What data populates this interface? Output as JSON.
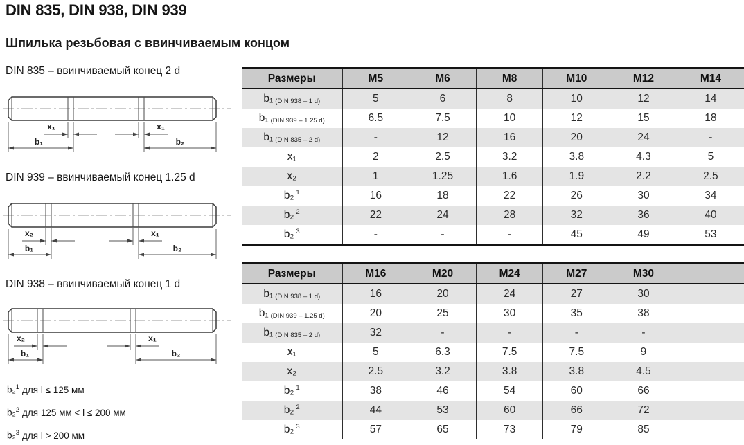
{
  "page": {
    "title": "DIN 835, DIN 938, DIN 939",
    "subtitle": "Шпилька резьбовая с ввинчиваемым концом"
  },
  "drawings": [
    {
      "caption": "DIN 835 – ввинчиваемый конец 2 d",
      "dims": {
        "left_x": "x₁",
        "left_b": "b₁",
        "right_x": "x₁",
        "right_b": "b₂"
      }
    },
    {
      "caption": "DIN 939 – ввинчиваемый конец 1.25 d",
      "dims": {
        "left_x": "x₂",
        "left_b": "b₁",
        "right_x": "x₁",
        "right_b": "b₂"
      }
    },
    {
      "caption": "DIN 938 – ввинчиваемый конец 1 d",
      "dims": {
        "left_x": "x₂",
        "left_b": "b₁",
        "right_x": "x₁",
        "right_b": "b₂"
      }
    }
  ],
  "footnotes": [
    {
      "label": "b₂",
      "sup": "1",
      "text": "для l ≤ 125 мм"
    },
    {
      "label": "b₂",
      "sup": "2",
      "text": "для 125 мм < l ≤ 200 мм"
    },
    {
      "label": "b₂",
      "sup": "3",
      "text": "для l > 200 мм"
    }
  ],
  "tables": [
    {
      "headers": [
        "Размеры",
        "M5",
        "M6",
        "M8",
        "M10",
        "M12",
        "M14"
      ],
      "rows": [
        {
          "label": "b₁",
          "note": "(DIN 938 – 1 d)",
          "sup": "",
          "values": [
            "5",
            "6",
            "8",
            "10",
            "12",
            "14"
          ]
        },
        {
          "label": "b₁",
          "note": "(DIN 939 – 1.25 d)",
          "sup": "",
          "values": [
            "6.5",
            "7.5",
            "10",
            "12",
            "15",
            "18"
          ]
        },
        {
          "label": "b₁",
          "note": "(DIN 835 – 2 d)",
          "sup": "",
          "values": [
            "-",
            "12",
            "16",
            "20",
            "24",
            "-"
          ]
        },
        {
          "label": "x₁",
          "note": "",
          "sup": "",
          "values": [
            "2",
            "2.5",
            "3.2",
            "3.8",
            "4.3",
            "5"
          ]
        },
        {
          "label": "x₂",
          "note": "",
          "sup": "",
          "values": [
            "1",
            "1.25",
            "1.6",
            "1.9",
            "2.2",
            "2.5"
          ]
        },
        {
          "label": "b₂",
          "note": "",
          "sup": "1",
          "values": [
            "16",
            "18",
            "22",
            "26",
            "30",
            "34"
          ]
        },
        {
          "label": "b₂",
          "note": "",
          "sup": "2",
          "values": [
            "22",
            "24",
            "28",
            "32",
            "36",
            "40"
          ]
        },
        {
          "label": "b₂",
          "note": "",
          "sup": "3",
          "values": [
            "-",
            "-",
            "-",
            "45",
            "49",
            "53"
          ]
        }
      ]
    },
    {
      "headers": [
        "Размеры",
        "M16",
        "M20",
        "M24",
        "M27",
        "M30",
        ""
      ],
      "rows": [
        {
          "label": "b₁",
          "note": "(DIN 938 – 1 d)",
          "sup": "",
          "values": [
            "16",
            "20",
            "24",
            "27",
            "30",
            ""
          ]
        },
        {
          "label": "b₁",
          "note": "(DIN 939 – 1.25 d)",
          "sup": "",
          "values": [
            "20",
            "25",
            "30",
            "35",
            "38",
            ""
          ]
        },
        {
          "label": "b₁",
          "note": "(DIN 835 – 2 d)",
          "sup": "",
          "values": [
            "32",
            "-",
            "-",
            "-",
            "-",
            ""
          ]
        },
        {
          "label": "x₁",
          "note": "",
          "sup": "",
          "values": [
            "5",
            "6.3",
            "7.5",
            "7.5",
            "9",
            ""
          ]
        },
        {
          "label": "x₂",
          "note": "",
          "sup": "",
          "values": [
            "2.5",
            "3.2",
            "3.8",
            "3.8",
            "4.5",
            ""
          ]
        },
        {
          "label": "b₂",
          "note": "",
          "sup": "1",
          "values": [
            "38",
            "46",
            "54",
            "60",
            "66",
            ""
          ]
        },
        {
          "label": "b₂",
          "note": "",
          "sup": "2",
          "values": [
            "44",
            "53",
            "60",
            "66",
            "72",
            ""
          ]
        },
        {
          "label": "b₂",
          "note": "",
          "sup": "3",
          "values": [
            "57",
            "65",
            "73",
            "79",
            "85",
            ""
          ]
        }
      ]
    }
  ],
  "colors": {
    "header_bg": "#cbcbcb",
    "row_stripe": "#e4e4e4",
    "table_border": "#141414"
  }
}
